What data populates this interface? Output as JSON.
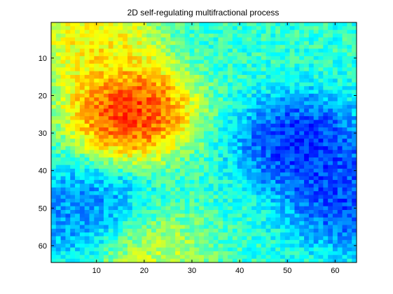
{
  "chart_data": {
    "type": "heatmap",
    "title": "2D self-regulating multifractional process",
    "xlabel": "",
    "ylabel": "",
    "colormap": "jet",
    "grid": false,
    "xlim": [
      0.5,
      64.5
    ],
    "ylim": [
      64.5,
      0.5
    ],
    "y_reversed": true,
    "x_ticks": [
      10,
      20,
      30,
      40,
      50,
      60
    ],
    "x_tick_labels": [
      "10",
      "20",
      "30",
      "40",
      "50",
      "60"
    ],
    "y_ticks": [
      10,
      20,
      30,
      40,
      50,
      60
    ],
    "y_tick_labels": [
      "10",
      "20",
      "30",
      "40",
      "50",
      "60"
    ],
    "grid_size": [
      64,
      64
    ],
    "value_range": [
      0,
      1
    ],
    "features": [
      {
        "region": "hot spot",
        "row": 24,
        "col": 17,
        "value": 0.95
      },
      {
        "region": "warm band",
        "row": 6,
        "col": 10,
        "value": 0.7
      },
      {
        "region": "cold basin",
        "row": 33,
        "col": 53,
        "value": 0.08
      },
      {
        "region": "cool area",
        "row": 52,
        "col": 8,
        "value": 0.2
      },
      {
        "region": "cool right edge",
        "row": 48,
        "col": 63,
        "value": 0.12
      },
      {
        "region": "warm pocket",
        "row": 63,
        "col": 20,
        "value": 0.62
      }
    ]
  }
}
